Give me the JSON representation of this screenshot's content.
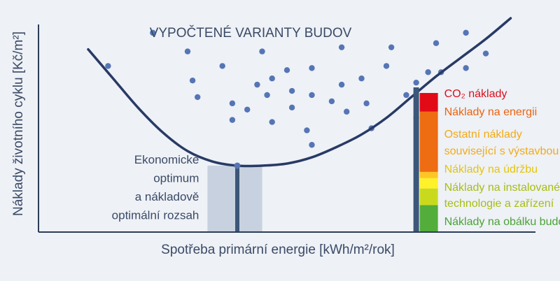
{
  "chart_data": {
    "type": "scatter",
    "title": "VYPOČTENÉ VARIANTY BUDOV",
    "xlabel": "Spotřeba primární energie [kWh/m²/rok]",
    "ylabel": "Náklady životního cyklu [Kč/m²]",
    "axis_ticks": "none",
    "grid": false,
    "x_range": [
      0,
      100
    ],
    "y_range": [
      0,
      100
    ],
    "variants": [
      {
        "x": 14,
        "y": 80
      },
      {
        "x": 23,
        "y": 96
      },
      {
        "x": 30,
        "y": 87
      },
      {
        "x": 32,
        "y": 65
      },
      {
        "x": 31,
        "y": 73
      },
      {
        "x": 37,
        "y": 80
      },
      {
        "x": 39,
        "y": 62
      },
      {
        "x": 39,
        "y": 54
      },
      {
        "x": 42,
        "y": 59
      },
      {
        "x": 44,
        "y": 71
      },
      {
        "x": 45,
        "y": 87
      },
      {
        "x": 47,
        "y": 74
      },
      {
        "x": 46,
        "y": 66
      },
      {
        "x": 47,
        "y": 53
      },
      {
        "x": 50,
        "y": 78
      },
      {
        "x": 51,
        "y": 68
      },
      {
        "x": 51,
        "y": 60
      },
      {
        "x": 55,
        "y": 66
      },
      {
        "x": 54,
        "y": 49
      },
      {
        "x": 55,
        "y": 79
      },
      {
        "x": 55,
        "y": 42
      },
      {
        "x": 59,
        "y": 63
      },
      {
        "x": 61,
        "y": 89
      },
      {
        "x": 61,
        "y": 71
      },
      {
        "x": 62,
        "y": 58
      },
      {
        "x": 65,
        "y": 74
      },
      {
        "x": 66,
        "y": 62
      },
      {
        "x": 67,
        "y": 50
      },
      {
        "x": 70,
        "y": 80
      },
      {
        "x": 71,
        "y": 89
      },
      {
        "x": 74,
        "y": 66
      },
      {
        "x": 76,
        "y": 55
      },
      {
        "x": 76,
        "y": 72
      },
      {
        "x": 80,
        "y": 91
      },
      {
        "x": 81,
        "y": 77
      },
      {
        "x": 86,
        "y": 96
      },
      {
        "x": 86,
        "y": 79
      },
      {
        "x": 90,
        "y": 86
      },
      {
        "x": 79,
        "y": 61
      }
    ],
    "optimum_curve": [
      {
        "x": 10,
        "y": 88
      },
      {
        "x": 15,
        "y": 74
      },
      {
        "x": 20,
        "y": 60
      },
      {
        "x": 25,
        "y": 48
      },
      {
        "x": 30,
        "y": 39
      },
      {
        "x": 35,
        "y": 34
      },
      {
        "x": 40,
        "y": 32
      },
      {
        "x": 45,
        "y": 32
      },
      {
        "x": 50,
        "y": 33
      },
      {
        "x": 55,
        "y": 36
      },
      {
        "x": 60,
        "y": 41
      },
      {
        "x": 65,
        "y": 47
      },
      {
        "x": 70,
        "y": 55
      },
      {
        "x": 75,
        "y": 65
      },
      {
        "x": 80,
        "y": 75
      },
      {
        "x": 85,
        "y": 84
      },
      {
        "x": 90,
        "y": 93
      },
      {
        "x": 95,
        "y": 103
      }
    ],
    "optimum": {
      "label": [
        "Ekonomické",
        "optimum",
        "a nákladově",
        "optimální rozsah"
      ],
      "x": 40,
      "range": [
        34,
        45
      ]
    },
    "cost_breakdown": {
      "x": 76,
      "components": [
        {
          "name": "Náklady na obálku budovy",
          "value": 13,
          "color": "#52ad3b",
          "label_color": "#4aa336"
        },
        {
          "name": "Náklady na instalované technologie a zařízení",
          "value": 8,
          "color": "#c9da1d",
          "label_color": "#a8bd13"
        },
        {
          "name": "Náklady na údržbu",
          "value": 5,
          "color": "#fff12a",
          "label_color": "#e4c50d"
        },
        {
          "name": "Ostatní náklady související s výstavbou",
          "value": 3,
          "color": "#ffc526",
          "label_color": "#f3ab15"
        },
        {
          "name": "Náklady na energii",
          "value": 29,
          "color": "#ee6c12",
          "label_color": "#ea6410"
        },
        {
          "name": "CO₂ náklady",
          "value": 9,
          "color": "#e20a17",
          "label_color": "#d8101d"
        }
      ]
    }
  },
  "colors": {
    "background": "#eef1f6",
    "axis": "#2b3e57",
    "curve": "#283a65",
    "dots": "#5575b5",
    "optimum_band": "#c8d1df",
    "column_stroke": "#3b5779",
    "text": "#3a4a66"
  }
}
